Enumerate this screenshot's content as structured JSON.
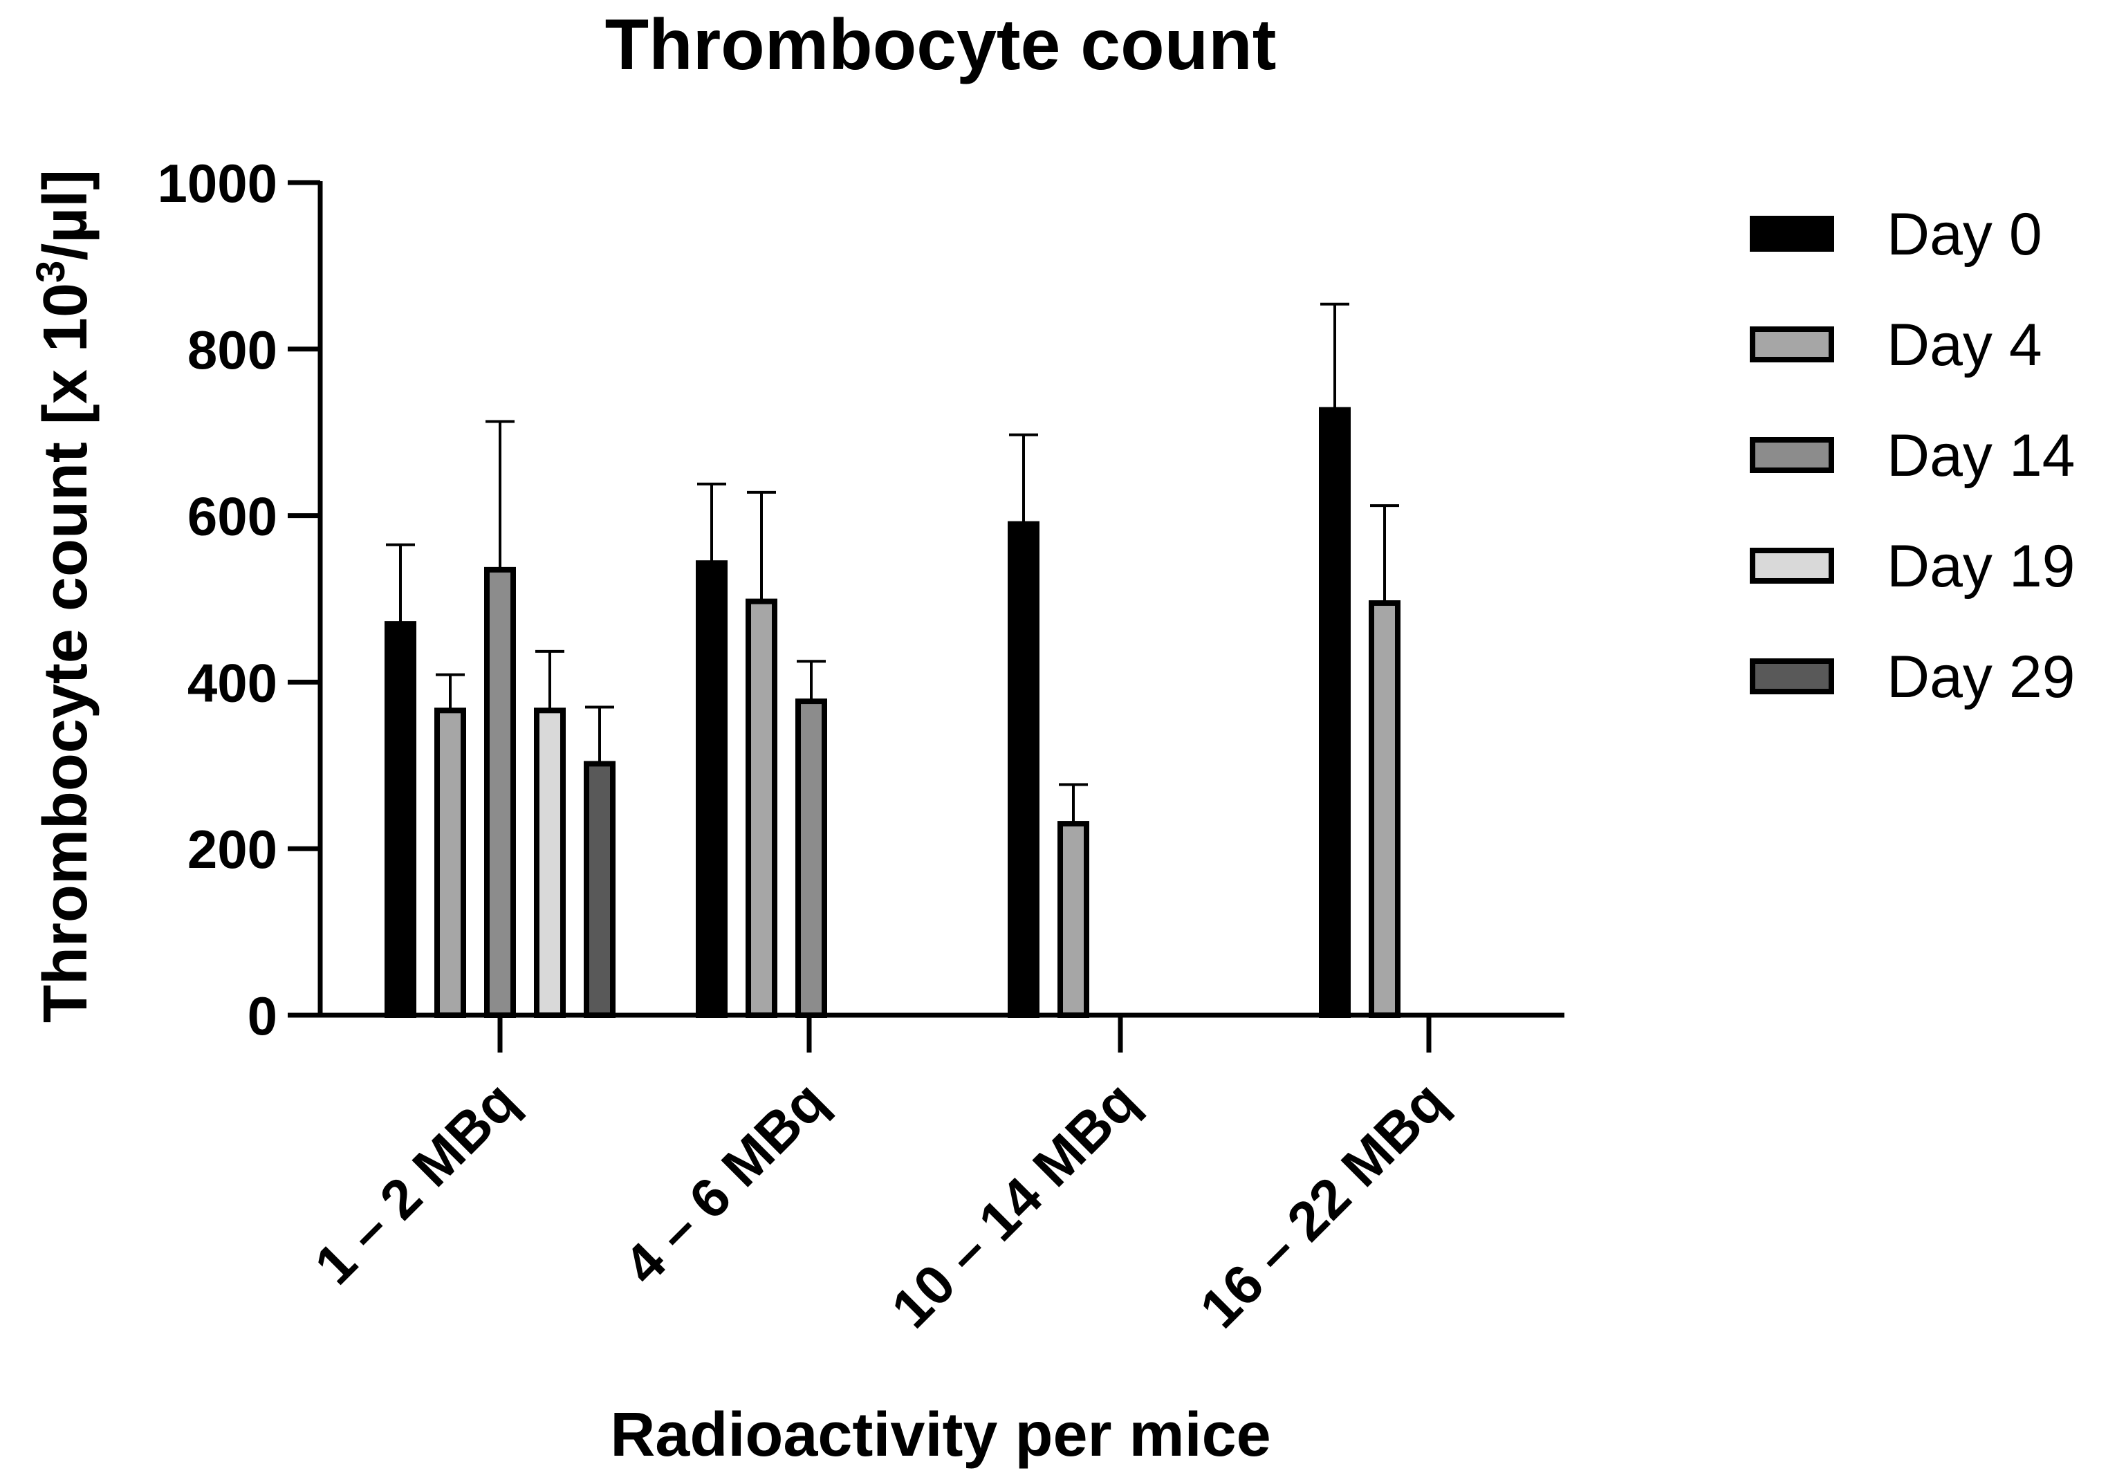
{
  "chart_data": {
    "type": "bar",
    "title": "Thrombocyte count",
    "xlabel": "Radioactivity per mice",
    "ylabel": "Thrombocyte count [x 10³/µl]",
    "ylabel_parts": {
      "pre": "Thrombocyte count [x 10",
      "sup": "3",
      "post": "/µl]"
    },
    "ylim": [
      0,
      1000
    ],
    "yticks": [
      0,
      200,
      400,
      600,
      800,
      1000
    ],
    "categories": [
      "1 – 2 MBq",
      "4 – 6 MBq",
      "10 – 14 MBq",
      "16 – 22 MBq"
    ],
    "series": [
      {
        "name": "Day 0",
        "color": "#000000",
        "values": [
          470,
          543,
          590,
          727
        ],
        "errors": [
          95,
          95,
          107,
          127
        ]
      },
      {
        "name": "Day 4",
        "color": "#a6a6a6",
        "values": [
          366,
          497,
          230,
          495
        ],
        "errors": [
          43,
          131,
          47,
          117
        ]
      },
      {
        "name": "Day 14",
        "color": "#8c8c8c",
        "values": [
          535,
          377,
          null,
          null
        ],
        "errors": [
          178,
          48,
          null,
          null
        ]
      },
      {
        "name": "Day 19",
        "color": "#d9d9d9",
        "values": [
          366,
          null,
          null,
          null
        ],
        "errors": [
          71,
          null,
          null,
          null
        ]
      },
      {
        "name": "Day 29",
        "color": "#595959",
        "values": [
          302,
          null,
          null,
          null
        ],
        "errors": [
          68,
          null,
          null,
          null
        ]
      }
    ],
    "legend_position": "right",
    "grid": false
  }
}
